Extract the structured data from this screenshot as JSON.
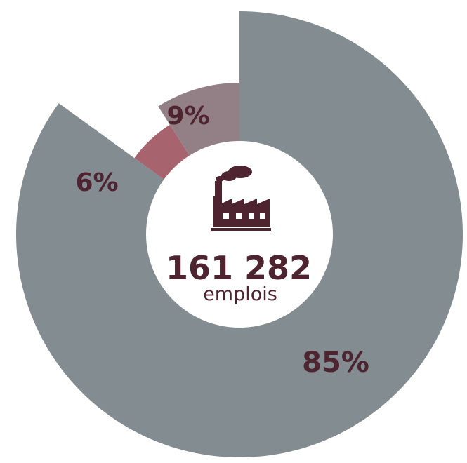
{
  "chart_data": {
    "type": "pie",
    "variant": "radial-donut",
    "slices": [
      {
        "label": "85%",
        "value": 85,
        "color": "#838d91"
      },
      {
        "label": "6%",
        "value": 6,
        "color": "#a8646e"
      },
      {
        "label": "9%",
        "value": 9,
        "color": "#938087"
      }
    ],
    "center": {
      "value": "161 282",
      "caption": "emplois",
      "icon": "factory-icon"
    },
    "colors": {
      "text": "#4e2430",
      "hole": "#ffffff",
      "background": "#ffffff"
    }
  }
}
